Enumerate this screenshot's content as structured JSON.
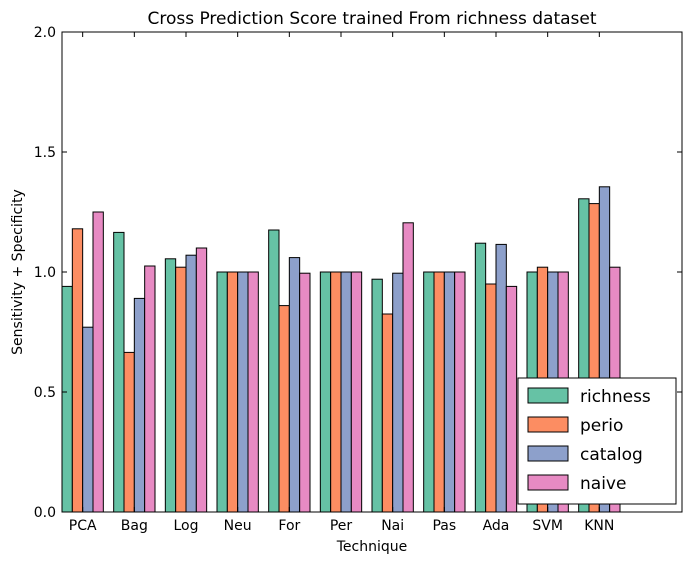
{
  "chart_data": {
    "type": "bar",
    "title": "Cross Prediction Score trained From richness dataset",
    "xlabel": "Technique",
    "ylabel": "Sensitivity + Specificity",
    "ylim": [
      0,
      2.0
    ],
    "yticks": [
      "0.0",
      "0.5",
      "1.0",
      "1.5",
      "2.0"
    ],
    "categories": [
      "PCA",
      "Bag",
      "Log",
      "Neu",
      "For",
      "Per",
      "Nai",
      "Pas",
      "Ada",
      "SVM",
      "KNN"
    ],
    "series": [
      {
        "name": "richness",
        "color": "#66c2a5",
        "values": [
          0.94,
          1.165,
          1.055,
          1.0,
          1.175,
          1.0,
          0.97,
          1.0,
          1.12,
          1.0,
          1.305
        ]
      },
      {
        "name": "perio",
        "color": "#fc8d62",
        "values": [
          1.18,
          0.665,
          1.02,
          1.0,
          0.86,
          1.0,
          0.825,
          1.0,
          0.95,
          1.02,
          1.285
        ]
      },
      {
        "name": "catalog",
        "color": "#8da0cb",
        "values": [
          0.77,
          0.89,
          1.07,
          1.0,
          1.06,
          1.0,
          0.995,
          1.0,
          1.115,
          1.0,
          1.355
        ]
      },
      {
        "name": "naive",
        "color": "#e78ac3",
        "values": [
          1.25,
          1.025,
          1.1,
          1.0,
          0.995,
          1.0,
          1.205,
          1.0,
          0.94,
          1.0,
          1.02
        ]
      }
    ],
    "grid": false,
    "legend_position": "bottom-right"
  }
}
